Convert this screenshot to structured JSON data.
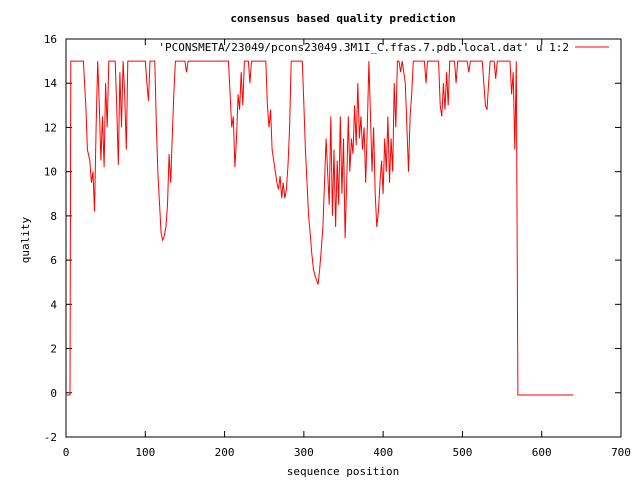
{
  "chart_data": {
    "type": "line",
    "title": "consensus based quality prediction",
    "xlabel": "sequence position",
    "ylabel": "quality",
    "xlim": [
      0,
      700
    ],
    "ylim": [
      -2,
      16
    ],
    "xticks": [
      "0",
      "100",
      "200",
      "300",
      "400",
      "500",
      "600",
      "700"
    ],
    "yticks": [
      "-2",
      "0",
      "2",
      "4",
      "6",
      "8",
      "10",
      "12",
      "14",
      "16"
    ],
    "legend_position": "top-right",
    "grid": false,
    "series": [
      {
        "name": "'PCONSMETA/23049/pcons23049.3M1I_C.ffas.7.pdb.local.dat' u 1:2",
        "color": "#ff0000",
        "points": [
          [
            1,
            -0.1
          ],
          [
            5,
            -0.1
          ],
          [
            6,
            15
          ],
          [
            22,
            15
          ],
          [
            25,
            13
          ],
          [
            27,
            11
          ],
          [
            30,
            10.5
          ],
          [
            32,
            9.5
          ],
          [
            34,
            10
          ],
          [
            36,
            8.2
          ],
          [
            38,
            12
          ],
          [
            40,
            15
          ],
          [
            42,
            13
          ],
          [
            44,
            10.5
          ],
          [
            46,
            12.5
          ],
          [
            48,
            10.2
          ],
          [
            50,
            14
          ],
          [
            52,
            12
          ],
          [
            54,
            15
          ],
          [
            62,
            15
          ],
          [
            64,
            13
          ],
          [
            66,
            10.3
          ],
          [
            68,
            14.5
          ],
          [
            70,
            12
          ],
          [
            72,
            15
          ],
          [
            74,
            13.5
          ],
          [
            76,
            11
          ],
          [
            78,
            15
          ],
          [
            100,
            15
          ],
          [
            102,
            14
          ],
          [
            104,
            13.2
          ],
          [
            106,
            15
          ],
          [
            112,
            15
          ],
          [
            114,
            12
          ],
          [
            116,
            9.8
          ],
          [
            118,
            8.5
          ],
          [
            120,
            7.2
          ],
          [
            122,
            6.9
          ],
          [
            124,
            7.1
          ],
          [
            126,
            7.5
          ],
          [
            128,
            8.5
          ],
          [
            130,
            10.8
          ],
          [
            132,
            9.5
          ],
          [
            134,
            11.5
          ],
          [
            136,
            13.5
          ],
          [
            138,
            15
          ],
          [
            150,
            15
          ],
          [
            152,
            14.5
          ],
          [
            154,
            15
          ],
          [
            205,
            15
          ],
          [
            207,
            13.5
          ],
          [
            209,
            12
          ],
          [
            211,
            12.5
          ],
          [
            213,
            10.2
          ],
          [
            215,
            11.5
          ],
          [
            217,
            13.5
          ],
          [
            219,
            12.8
          ],
          [
            221,
            14.5
          ],
          [
            223,
            13
          ],
          [
            225,
            15
          ],
          [
            230,
            15
          ],
          [
            232,
            14
          ],
          [
            234,
            15
          ],
          [
            252,
            15
          ],
          [
            254,
            13
          ],
          [
            256,
            12
          ],
          [
            258,
            12.8
          ],
          [
            260,
            11
          ],
          [
            262,
            10.5
          ],
          [
            264,
            10
          ],
          [
            266,
            9.5
          ],
          [
            268,
            9.2
          ],
          [
            270,
            9.8
          ],
          [
            272,
            8.8
          ],
          [
            274,
            9.5
          ],
          [
            276,
            8.8
          ],
          [
            278,
            9.2
          ],
          [
            280,
            10.3
          ],
          [
            282,
            12
          ],
          [
            284,
            15
          ],
          [
            298,
            15
          ],
          [
            300,
            13
          ],
          [
            302,
            11
          ],
          [
            304,
            9.5
          ],
          [
            306,
            8
          ],
          [
            308,
            7.2
          ],
          [
            310,
            6.3
          ],
          [
            312,
            5.6
          ],
          [
            314,
            5.3
          ],
          [
            316,
            5.1
          ],
          [
            318,
            4.9
          ],
          [
            320,
            5.6
          ],
          [
            322,
            6.5
          ],
          [
            324,
            7.5
          ],
          [
            326,
            9.5
          ],
          [
            328,
            11.5
          ],
          [
            330,
            10
          ],
          [
            332,
            8.5
          ],
          [
            334,
            12.5
          ],
          [
            336,
            8
          ],
          [
            338,
            11
          ],
          [
            340,
            7.5
          ],
          [
            342,
            10.5
          ],
          [
            344,
            8.5
          ],
          [
            346,
            12.5
          ],
          [
            348,
            9
          ],
          [
            350,
            11.5
          ],
          [
            352,
            7
          ],
          [
            354,
            9.5
          ],
          [
            356,
            12.5
          ],
          [
            358,
            10
          ],
          [
            360,
            11.5
          ],
          [
            362,
            10.8
          ],
          [
            364,
            13
          ],
          [
            366,
            11.2
          ],
          [
            368,
            14
          ],
          [
            370,
            11.5
          ],
          [
            372,
            12.5
          ],
          [
            374,
            11
          ],
          [
            376,
            12
          ],
          [
            378,
            9.5
          ],
          [
            380,
            12
          ],
          [
            382,
            15
          ],
          [
            384,
            12.5
          ],
          [
            386,
            10
          ],
          [
            388,
            12
          ],
          [
            390,
            9
          ],
          [
            392,
            7.5
          ],
          [
            394,
            8.2
          ],
          [
            396,
            9.5
          ],
          [
            398,
            10.5
          ],
          [
            400,
            9
          ],
          [
            402,
            11.5
          ],
          [
            404,
            10
          ],
          [
            406,
            12.5
          ],
          [
            408,
            9.5
          ],
          [
            410,
            11.5
          ],
          [
            412,
            10
          ],
          [
            414,
            14
          ],
          [
            416,
            12
          ],
          [
            418,
            15
          ],
          [
            420,
            15
          ],
          [
            422,
            14.5
          ],
          [
            424,
            15
          ],
          [
            428,
            14
          ],
          [
            430,
            12
          ],
          [
            432,
            10
          ],
          [
            434,
            12.5
          ],
          [
            436,
            13.5
          ],
          [
            438,
            15
          ],
          [
            452,
            15
          ],
          [
            454,
            14
          ],
          [
            456,
            15
          ],
          [
            470,
            15
          ],
          [
            472,
            13
          ],
          [
            474,
            12.5
          ],
          [
            476,
            14
          ],
          [
            478,
            12.8
          ],
          [
            480,
            14.5
          ],
          [
            482,
            13
          ],
          [
            484,
            15
          ],
          [
            490,
            15
          ],
          [
            492,
            14
          ],
          [
            494,
            15
          ],
          [
            500,
            15
          ],
          [
            502,
            15
          ],
          [
            506,
            15
          ],
          [
            508,
            14.5
          ],
          [
            510,
            15
          ],
          [
            525,
            15
          ],
          [
            527,
            14
          ],
          [
            529,
            13
          ],
          [
            531,
            12.8
          ],
          [
            533,
            14
          ],
          [
            535,
            15
          ],
          [
            540,
            15
          ],
          [
            542,
            14.2
          ],
          [
            544,
            15
          ],
          [
            560,
            15
          ],
          [
            562,
            13.5
          ],
          [
            564,
            14.5
          ],
          [
            566,
            11
          ],
          [
            568,
            15
          ],
          [
            570,
            -0.1
          ],
          [
            640,
            -0.1
          ]
        ]
      }
    ]
  }
}
